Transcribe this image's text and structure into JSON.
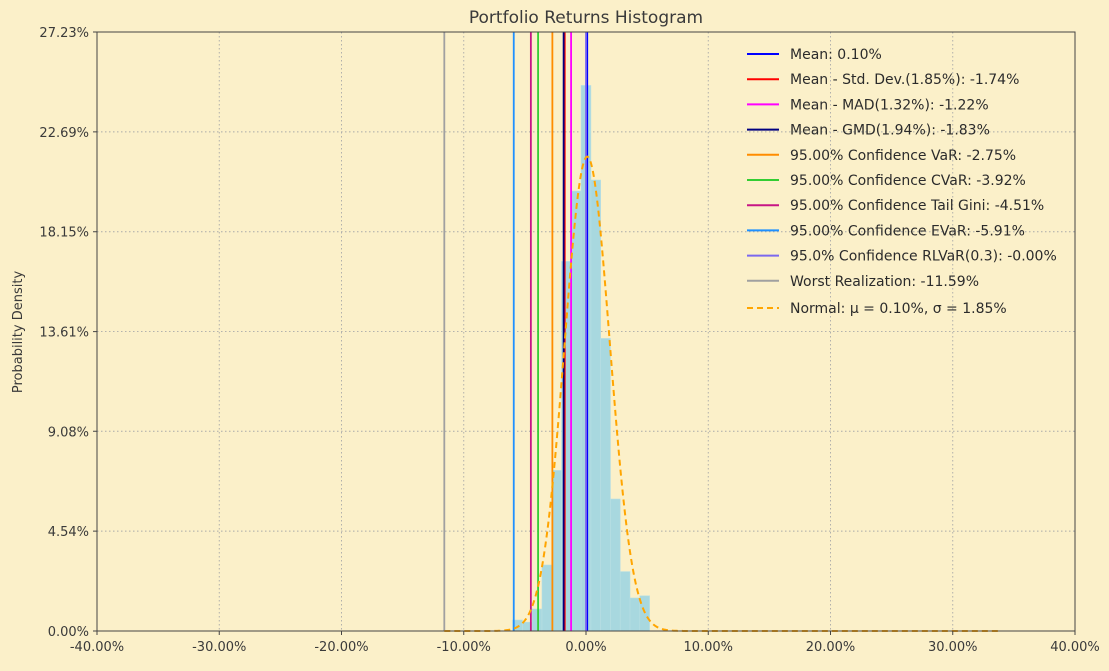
{
  "chart_data": {
    "type": "bar",
    "title": "Portfolio Returns Histogram",
    "xlabel": "",
    "ylabel": "Probability Density",
    "xlim": [
      -0.4,
      0.4
    ],
    "ylim": [
      0,
      0.2723
    ],
    "x_ticks": [
      -0.4,
      -0.3,
      -0.2,
      -0.1,
      0.0,
      0.1,
      0.2,
      0.3,
      0.4
    ],
    "x_tick_labels": [
      "-40.00%",
      "-30.00%",
      "-20.00%",
      "-10.00%",
      "0.00%",
      "10.00%",
      "20.00%",
      "30.00%",
      "40.00%"
    ],
    "y_ticks": [
      0.0,
      0.0454,
      0.0908,
      0.1361,
      0.1815,
      0.2269,
      0.2723
    ],
    "y_tick_labels": [
      "0.00%",
      "4.54%",
      "9.08%",
      "13.61%",
      "18.15%",
      "22.69%",
      "27.23%"
    ],
    "grid": true,
    "legend_position": "top-right",
    "histogram": {
      "color": "#a8d8df",
      "bins": [
        {
          "x0": -0.06,
          "x1": -0.052,
          "value": 0.005
        },
        {
          "x0": -0.052,
          "x1": -0.044,
          "value": 0.004
        },
        {
          "x0": -0.044,
          "x1": -0.036,
          "value": 0.01
        },
        {
          "x0": -0.036,
          "x1": -0.028,
          "value": 0.03
        },
        {
          "x0": -0.028,
          "x1": -0.02,
          "value": 0.073
        },
        {
          "x0": -0.02,
          "x1": -0.012,
          "value": 0.168
        },
        {
          "x0": -0.012,
          "x1": -0.004,
          "value": 0.2
        },
        {
          "x0": -0.004,
          "x1": 0.004,
          "value": 0.248
        },
        {
          "x0": 0.004,
          "x1": 0.012,
          "value": 0.205
        },
        {
          "x0": 0.012,
          "x1": 0.02,
          "value": 0.133
        },
        {
          "x0": 0.02,
          "x1": 0.028,
          "value": 0.06
        },
        {
          "x0": 0.028,
          "x1": 0.036,
          "value": 0.027
        },
        {
          "x0": 0.036,
          "x1": 0.044,
          "value": 0.015
        },
        {
          "x0": 0.044,
          "x1": 0.052,
          "value": 0.016
        }
      ]
    },
    "vlines": [
      {
        "name": "Mean: 0.10%",
        "x": 0.001,
        "color": "#0000ff"
      },
      {
        "name": "Mean - Std. Dev.(1.85%): -1.74%",
        "x": -0.0174,
        "color": "#ff0000"
      },
      {
        "name": "Mean - MAD(1.32%): -1.22%",
        "x": -0.0122,
        "color": "#ff00ff"
      },
      {
        "name": "Mean - GMD(1.94%): -1.83%",
        "x": -0.0183,
        "color": "#000080"
      },
      {
        "name": "95.00% Confidence VaR: -2.75%",
        "x": -0.0275,
        "color": "#ff8c00"
      },
      {
        "name": "95.00% Confidence CVaR: -3.92%",
        "x": -0.0392,
        "color": "#32cd32"
      },
      {
        "name": "95.00% Confidence Tail Gini: -4.51%",
        "x": -0.0451,
        "color": "#c71585"
      },
      {
        "name": "95.00% Confidence EVaR: -5.91%",
        "x": -0.0591,
        "color": "#1e90ff"
      },
      {
        "name": "95.0% Confidence RLVaR(0.3): -0.00%",
        "x": -0.0,
        "color": "#7b68ee"
      },
      {
        "name": "Worst Realization: -11.59%",
        "x": -0.1159,
        "color": "#a0a0a0"
      }
    ],
    "normal_curve": {
      "name": "Normal: μ = 0.10%, σ = 1.85%",
      "mu": 0.001,
      "sigma": 0.0185,
      "x_range": [
        -0.1159,
        0.34
      ],
      "color": "#ffa500",
      "style": "dashed"
    }
  }
}
